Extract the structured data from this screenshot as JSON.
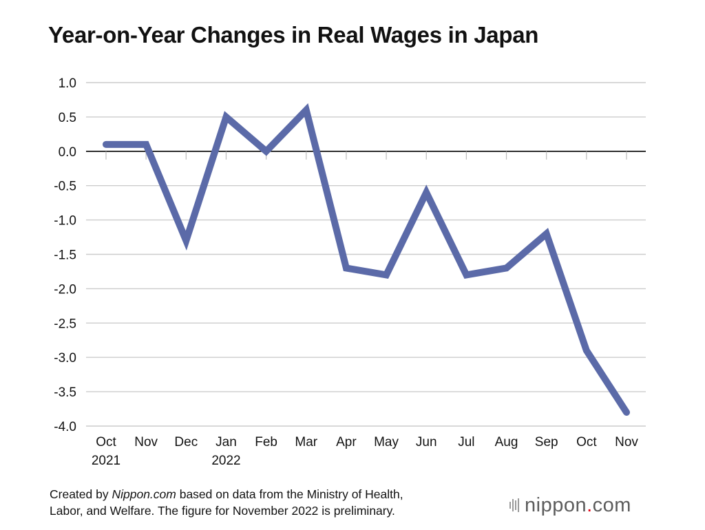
{
  "chart_data": {
    "type": "line",
    "title": "Year-on-Year Changes in Real Wages in Japan",
    "categories": [
      "Oct",
      "Nov",
      "Dec",
      "Jan",
      "Feb",
      "Mar",
      "Apr",
      "May",
      "Jun",
      "Jul",
      "Aug",
      "Sep",
      "Oct",
      "Nov"
    ],
    "category_sublabels": [
      "2021",
      "",
      "",
      "2022",
      "",
      "",
      "",
      "",
      "",
      "",
      "",
      "",
      "",
      ""
    ],
    "series": [
      {
        "values": [
          0.1,
          0.1,
          -1.3,
          0.5,
          0.0,
          0.6,
          -1.7,
          -1.8,
          -0.6,
          -1.8,
          -1.7,
          -1.2,
          -2.9,
          -3.8
        ],
        "color": "#5b6aa8"
      }
    ],
    "y_ticks": [
      "1.0",
      "0.5",
      "0.0",
      "-0.5",
      "-1.0",
      "-1.5",
      "-2.0",
      "-2.5",
      "-3.0",
      "-3.5",
      "-4.0"
    ],
    "ylim": [
      -4.0,
      1.0
    ],
    "xlabel": "",
    "ylabel": "",
    "grid": true,
    "zero_line": true
  },
  "footer": {
    "prefix": "Created by ",
    "source_italic": "Nippon.com",
    "line1_rest": " based on data from the Ministry of Health,",
    "line2": "Labor, and Welfare. The figure for November 2022 is preliminary."
  },
  "logo": {
    "name": "nippon",
    "dot": ".",
    "suffix": "com"
  },
  "colors": {
    "line": "#5b6aa8",
    "grid": "#cccccc",
    "axis": "#000000",
    "logo_dot": "#e60012"
  }
}
